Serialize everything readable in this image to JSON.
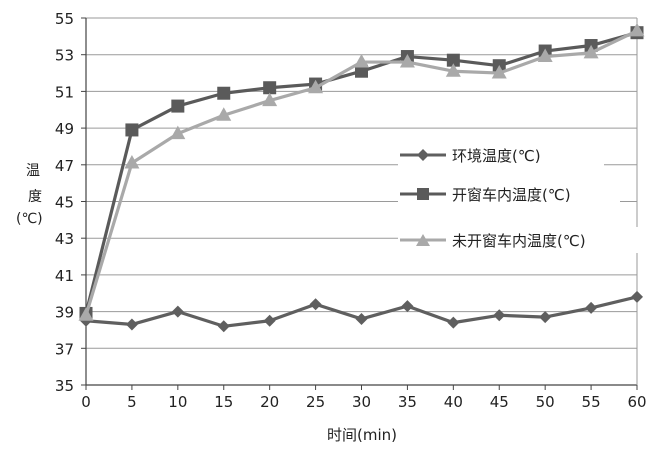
{
  "chart_data": {
    "type": "line",
    "xlabel": "时间(min)",
    "ylabel": [
      "温",
      "度",
      "(℃)"
    ],
    "x": [
      0,
      5,
      10,
      15,
      20,
      25,
      30,
      35,
      40,
      45,
      50,
      55,
      60
    ],
    "xlim": [
      0,
      60
    ],
    "ylim": [
      35,
      55
    ],
    "yticks": [
      35,
      37,
      39,
      41,
      43,
      45,
      47,
      49,
      51,
      53,
      55
    ],
    "grid": "horizontal",
    "legend_position": "center-right",
    "series": [
      {
        "name": "环境温度(℃)",
        "marker": "diamond",
        "color": "#5f5f5f",
        "values": [
          38.5,
          38.3,
          39.0,
          38.2,
          38.5,
          39.4,
          38.6,
          39.3,
          38.4,
          38.8,
          38.7,
          39.2,
          39.8
        ]
      },
      {
        "name": "开窗车内温度(℃)",
        "marker": "square",
        "color": "#5a5a5a",
        "values": [
          38.9,
          48.9,
          50.2,
          50.9,
          51.2,
          51.4,
          52.1,
          52.9,
          52.7,
          52.4,
          53.2,
          53.5,
          54.2
        ]
      },
      {
        "name": "未开窗车内温度(℃)",
        "marker": "triangle",
        "color": "#a9a9a9",
        "values": [
          38.8,
          47.1,
          48.7,
          49.7,
          50.5,
          51.2,
          52.6,
          52.6,
          52.1,
          52.0,
          52.9,
          53.1,
          54.3
        ]
      }
    ]
  }
}
